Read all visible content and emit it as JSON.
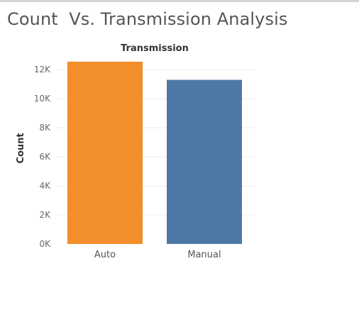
{
  "page": {
    "title": "Count  Vs. Transmission Analysis"
  },
  "chart_data": {
    "type": "bar",
    "title": "Count  Vs. Transmission Analysis",
    "header": "Transmission",
    "xlabel": "",
    "ylabel": "Count",
    "categories": [
      "Auto",
      "Manual"
    ],
    "values": [
      12550,
      11300
    ],
    "colors": [
      "#F28E2B",
      "#4E79A7"
    ],
    "ylim": [
      0,
      12500
    ],
    "yticks": [
      0,
      2000,
      4000,
      6000,
      8000,
      10000,
      12000
    ],
    "ytick_labels": [
      "0K",
      "2K",
      "4K",
      "6K",
      "8K",
      "10K",
      "12K"
    ],
    "grid": true,
    "legend": "none"
  }
}
